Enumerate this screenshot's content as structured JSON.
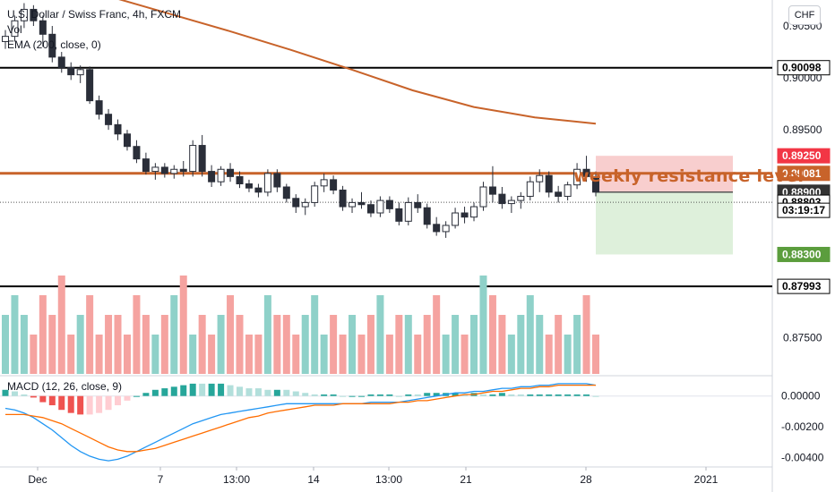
{
  "legend": {
    "symbol": "U.S. Dollar / Swiss Franc, 4h, FXCM",
    "volume": "Vol",
    "ema": "EMA (200, close, 0)",
    "macd": "MACD (12, 26, close, 9)"
  },
  "currency_button": "CHF",
  "annotation": "weekly resistance level",
  "colors": {
    "up": "#26a69a",
    "down": "#ef5350",
    "vol_up": "#8fd1c9",
    "vol_down": "#f5a3a0",
    "ema": "#c8632a",
    "resistance": "#c8632a",
    "macd_line": "#2196f3",
    "signal_line": "#ff6d00",
    "stop_zone": "#f7c6c6",
    "target_zone": "#d8edd5"
  },
  "chart_data": {
    "type": "candlestick",
    "y_axis": {
      "min": 0.8715,
      "max": 0.9075,
      "ticks": [
        "0.90500",
        "0.90000",
        "0.89500",
        "0.87500"
      ]
    },
    "x_axis": {
      "ticks": [
        "Dec",
        "7",
        "13:00",
        "14",
        "13:00",
        "21",
        "28",
        "2021"
      ]
    },
    "horizontal_lines": [
      {
        "value": 0.90098,
        "color": "#000000"
      },
      {
        "value": 0.87993,
        "color": "#000000"
      },
      {
        "value": 0.89081,
        "color": "#c8632a"
      }
    ],
    "price_labels": [
      {
        "text": "0.90098",
        "value": 0.90098,
        "bg": "#ffffff",
        "fg": "#000000",
        "border": "#000000"
      },
      {
        "text": "0.89250",
        "value": 0.8925,
        "bg": "#f23645",
        "fg": "#ffffff"
      },
      {
        "text": "0.89081",
        "value": 0.89081,
        "bg": "#c8632a",
        "fg": "#ffffff"
      },
      {
        "text": "0.88900",
        "value": 0.889,
        "bg": "#333333",
        "fg": "#ffffff"
      },
      {
        "text": "0.88803",
        "value": 0.88803,
        "bg": "#ffffff",
        "fg": "#000000",
        "border": "#000000"
      },
      {
        "text": "03:19:17",
        "value": 0.88725,
        "bg": "#ffffff",
        "fg": "#000000",
        "border": "#000000"
      },
      {
        "text": "0.88300",
        "value": 0.883,
        "bg": "#5b9d3d",
        "fg": "#ffffff"
      },
      {
        "text": "0.87993",
        "value": 0.87993,
        "bg": "#ffffff",
        "fg": "#000000",
        "border": "#000000"
      }
    ],
    "position": {
      "entry": 0.889,
      "stop": 0.8925,
      "target": 0.883
    },
    "macd_axis": {
      "min": -0.0046,
      "max": 0.0012,
      "ticks": [
        "0.00000",
        "-0.00200",
        "-0.00400"
      ]
    },
    "ema_200": [
      0.9079,
      0.9062,
      0.9045,
      0.9027,
      0.9008,
      0.8988,
      0.8972,
      0.8962,
      0.8956
    ],
    "candles": [
      [
        0.9035,
        0.9046,
        0.9028,
        0.904
      ],
      [
        0.904,
        0.906,
        0.9035,
        0.9055
      ],
      [
        0.9055,
        0.9072,
        0.9048,
        0.9066
      ],
      [
        0.9066,
        0.907,
        0.905,
        0.9055
      ],
      [
        0.9055,
        0.906,
        0.903,
        0.9042
      ],
      [
        0.9042,
        0.905,
        0.9015,
        0.902
      ],
      [
        0.902,
        0.9025,
        0.9005,
        0.901
      ],
      [
        0.901,
        0.9015,
        0.8998,
        0.9003
      ],
      [
        0.9003,
        0.9012,
        0.8995,
        0.9008
      ],
      [
        0.9008,
        0.9011,
        0.8975,
        0.8978
      ],
      [
        0.8978,
        0.8983,
        0.896,
        0.8965
      ],
      [
        0.8965,
        0.897,
        0.895,
        0.8955
      ],
      [
        0.8955,
        0.896,
        0.894,
        0.8946
      ],
      [
        0.8946,
        0.895,
        0.893,
        0.8934
      ],
      [
        0.8934,
        0.894,
        0.8918,
        0.8922
      ],
      [
        0.8922,
        0.8928,
        0.8907,
        0.891
      ],
      [
        0.891,
        0.8918,
        0.8902,
        0.8914
      ],
      [
        0.8914,
        0.8918,
        0.8904,
        0.8908
      ],
      [
        0.8908,
        0.8916,
        0.8903,
        0.8912
      ],
      [
        0.8912,
        0.892,
        0.8905,
        0.891
      ],
      [
        0.891,
        0.894,
        0.8905,
        0.8935
      ],
      [
        0.8935,
        0.8945,
        0.8905,
        0.891
      ],
      [
        0.891,
        0.8916,
        0.8895,
        0.89
      ],
      [
        0.89,
        0.8915,
        0.8896,
        0.8912
      ],
      [
        0.8912,
        0.8918,
        0.89,
        0.8905
      ],
      [
        0.8905,
        0.891,
        0.8894,
        0.8898
      ],
      [
        0.8898,
        0.8902,
        0.889,
        0.8894
      ],
      [
        0.8894,
        0.8898,
        0.8885,
        0.889
      ],
      [
        0.889,
        0.8912,
        0.8886,
        0.8908
      ],
      [
        0.8908,
        0.8912,
        0.889,
        0.8895
      ],
      [
        0.8895,
        0.8898,
        0.888,
        0.8884
      ],
      [
        0.8884,
        0.8888,
        0.887,
        0.8876
      ],
      [
        0.8876,
        0.8884,
        0.8868,
        0.888
      ],
      [
        0.888,
        0.89,
        0.8876,
        0.8896
      ],
      [
        0.8896,
        0.8908,
        0.889,
        0.8902
      ],
      [
        0.8902,
        0.8906,
        0.8888,
        0.8892
      ],
      [
        0.8892,
        0.8896,
        0.8872,
        0.8876
      ],
      [
        0.8876,
        0.8884,
        0.887,
        0.888
      ],
      [
        0.888,
        0.889,
        0.8874,
        0.8878
      ],
      [
        0.8878,
        0.8882,
        0.8866,
        0.887
      ],
      [
        0.887,
        0.8886,
        0.8866,
        0.8882
      ],
      [
        0.8882,
        0.8886,
        0.887,
        0.8874
      ],
      [
        0.8874,
        0.888,
        0.8858,
        0.8862
      ],
      [
        0.8862,
        0.8885,
        0.8858,
        0.888
      ],
      [
        0.888,
        0.8888,
        0.887,
        0.8875
      ],
      [
        0.8875,
        0.8879,
        0.8855,
        0.8859
      ],
      [
        0.8859,
        0.8866,
        0.8848,
        0.8852
      ],
      [
        0.8852,
        0.8862,
        0.8846,
        0.8858
      ],
      [
        0.8858,
        0.8875,
        0.8855,
        0.887
      ],
      [
        0.887,
        0.8876,
        0.886,
        0.8866
      ],
      [
        0.8866,
        0.888,
        0.8862,
        0.8876
      ],
      [
        0.8876,
        0.89,
        0.8872,
        0.8895
      ],
      [
        0.8895,
        0.8915,
        0.888,
        0.8888
      ],
      [
        0.8888,
        0.8895,
        0.8874,
        0.8879
      ],
      [
        0.8879,
        0.8886,
        0.887,
        0.8882
      ],
      [
        0.8882,
        0.889,
        0.8874,
        0.8886
      ],
      [
        0.8886,
        0.8905,
        0.8882,
        0.89
      ],
      [
        0.89,
        0.8912,
        0.889,
        0.8906
      ],
      [
        0.8906,
        0.891,
        0.8885,
        0.889
      ],
      [
        0.889,
        0.8896,
        0.888,
        0.8886
      ],
      [
        0.8886,
        0.89,
        0.8882,
        0.8897
      ],
      [
        0.8897,
        0.8918,
        0.8893,
        0.8912
      ],
      [
        0.8912,
        0.8925,
        0.89,
        0.8905
      ],
      [
        0.8905,
        0.891,
        0.8886,
        0.889
      ]
    ],
    "volume": [
      3,
      4,
      3,
      2,
      4,
      3,
      5,
      2,
      3,
      4,
      2,
      3,
      3,
      2,
      4,
      3,
      2,
      3,
      4,
      5,
      2,
      3,
      2,
      3,
      4,
      3,
      2,
      2,
      4,
      3,
      3,
      2,
      3,
      4,
      2,
      3,
      2,
      3,
      2,
      3,
      4,
      2,
      3,
      3,
      2,
      3,
      4,
      2,
      3,
      2,
      3,
      5,
      4,
      3,
      2,
      3,
      4,
      3,
      2,
      3,
      2,
      3,
      4,
      2
    ],
    "macd": [
      -0.0008,
      -0.0009,
      -0.0011,
      -0.0014,
      -0.0018,
      -0.0022,
      -0.0027,
      -0.0032,
      -0.0036,
      -0.0039,
      -0.0041,
      -0.0042,
      -0.0041,
      -0.0039,
      -0.0036,
      -0.0033,
      -0.003,
      -0.0027,
      -0.0024,
      -0.0021,
      -0.0018,
      -0.0016,
      -0.0014,
      -0.0012,
      -0.0011,
      -0.001,
      -0.0009,
      -0.0008,
      -0.0007,
      -0.0006,
      -0.0005,
      -0.0005,
      -0.0005,
      -0.0005,
      -0.0005,
      -0.0005,
      -0.0005,
      -0.0005,
      -0.0005,
      -0.0004,
      -0.0004,
      -0.0004,
      -0.0004,
      -0.0003,
      -0.0002,
      -0.0001,
      0.0,
      0.0001,
      0.0002,
      0.0002,
      0.0003,
      0.0003,
      0.0004,
      0.0005,
      0.0005,
      0.0006,
      0.0006,
      0.0007,
      0.0007,
      0.0008,
      0.0008,
      0.0008,
      0.0008,
      0.0007
    ],
    "signal": [
      -0.0012,
      -0.0012,
      -0.0012,
      -0.0013,
      -0.0014,
      -0.0016,
      -0.0018,
      -0.0021,
      -0.0024,
      -0.0027,
      -0.003,
      -0.0033,
      -0.0035,
      -0.0036,
      -0.0036,
      -0.0035,
      -0.0034,
      -0.0032,
      -0.003,
      -0.0028,
      -0.0026,
      -0.0024,
      -0.0022,
      -0.002,
      -0.0018,
      -0.0016,
      -0.0014,
      -0.0013,
      -0.0011,
      -0.001,
      -0.0009,
      -0.0008,
      -0.0007,
      -0.0006,
      -0.0006,
      -0.0006,
      -0.0005,
      -0.0005,
      -0.0005,
      -0.0005,
      -0.0005,
      -0.0005,
      -0.0004,
      -0.0004,
      -0.0003,
      -0.0003,
      -0.0002,
      -0.0001,
      0.0,
      0.0001,
      0.0001,
      0.0002,
      0.0003,
      0.0003,
      0.0004,
      0.0005,
      0.0005,
      0.0006,
      0.0006,
      0.0007,
      0.0007,
      0.0007,
      0.0007,
      0.0007
    ]
  }
}
